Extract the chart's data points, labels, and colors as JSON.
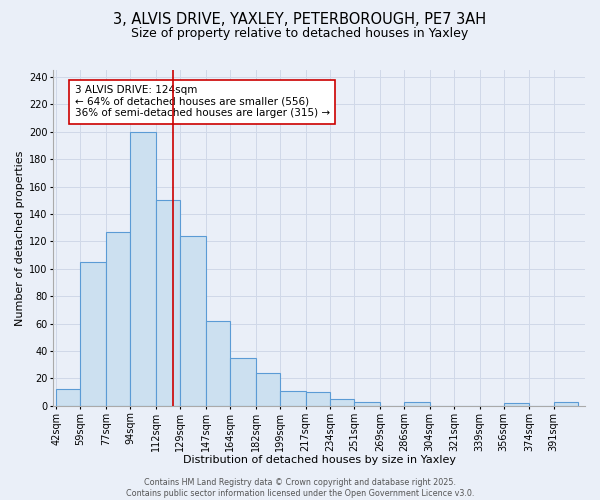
{
  "title": "3, ALVIS DRIVE, YAXLEY, PETERBOROUGH, PE7 3AH",
  "subtitle": "Size of property relative to detached houses in Yaxley",
  "xlabel": "Distribution of detached houses by size in Yaxley",
  "ylabel": "Number of detached properties",
  "bin_labels": [
    "42sqm",
    "59sqm",
    "77sqm",
    "94sqm",
    "112sqm",
    "129sqm",
    "147sqm",
    "164sqm",
    "182sqm",
    "199sqm",
    "217sqm",
    "234sqm",
    "251sqm",
    "269sqm",
    "286sqm",
    "304sqm",
    "321sqm",
    "339sqm",
    "356sqm",
    "374sqm",
    "391sqm"
  ],
  "bin_edges": [
    42,
    59,
    77,
    94,
    112,
    129,
    147,
    164,
    182,
    199,
    217,
    234,
    251,
    269,
    286,
    304,
    321,
    339,
    356,
    374,
    391,
    408
  ],
  "bar_heights": [
    12,
    105,
    127,
    200,
    150,
    124,
    62,
    35,
    24,
    11,
    10,
    5,
    3,
    0,
    3,
    0,
    0,
    0,
    2,
    0,
    3
  ],
  "bar_facecolor": "#cce0f0",
  "bar_edgecolor": "#5b9bd5",
  "bar_linewidth": 0.8,
  "vline_x": 124,
  "vline_color": "#cc0000",
  "vline_linewidth": 1.2,
  "annotation_line1": "3 ALVIS DRIVE: 124sqm",
  "annotation_line2": "← 64% of detached houses are smaller (556)",
  "annotation_line3": "36% of semi-detached houses are larger (315) →",
  "annotation_box_edgecolor": "#cc0000",
  "annotation_box_facecolor": "white",
  "ylim": [
    0,
    245
  ],
  "yticks": [
    0,
    20,
    40,
    60,
    80,
    100,
    120,
    140,
    160,
    180,
    200,
    220,
    240
  ],
  "grid_color": "#d0d8e8",
  "bg_color": "#eaeff8",
  "footer_text": "Contains HM Land Registry data © Crown copyright and database right 2025.\nContains public sector information licensed under the Open Government Licence v3.0.",
  "title_fontsize": 10.5,
  "subtitle_fontsize": 9,
  "axis_label_fontsize": 8,
  "tick_fontsize": 7,
  "annotation_fontsize": 7.5,
  "footer_fontsize": 5.8
}
